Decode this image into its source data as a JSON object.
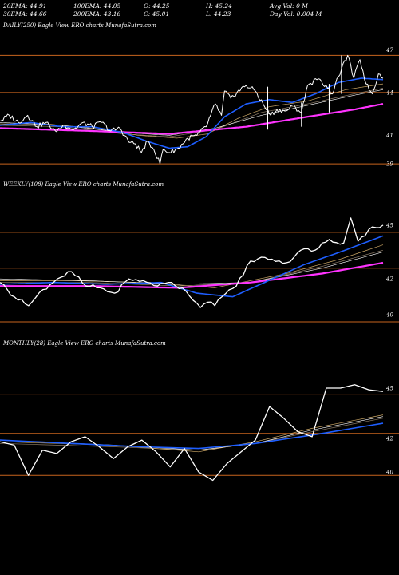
{
  "header": {
    "row1": [
      "20EMA: 44.91",
      "100EMA: 44.05",
      "O: 44.25",
      "H: 45.24",
      "Avg Vol: 0  M"
    ],
    "row2": [
      "30EMA: 44.66",
      "200EMA: 43.16",
      "C: 45.01",
      "L: 44.23",
      "Day Vol: 0.004  M"
    ]
  },
  "colors": {
    "price": "#ffffff",
    "ema_short": "#1e5eff",
    "ema_long": "#ff33ff",
    "ema_mid1": "#c8a464",
    "ema_mid2": "#8a7a66",
    "ema_mid3": "#ffffff",
    "level_line": "#c8641e",
    "background": "#000000"
  },
  "chart_data": [
    {
      "type": "line",
      "title": "DAILY(250) Eagle   View  ERO charts MunafaSutra.com",
      "y_ticks": [
        "47",
        "44",
        "41",
        "39"
      ],
      "y_tick_values": [
        47,
        44,
        41,
        39
      ],
      "ylim": [
        38.5,
        47.8
      ],
      "levels": [
        46.6,
        44.0,
        39.0
      ],
      "grid": false,
      "n": 250,
      "series": [
        {
          "key": "price",
          "color": "#ffffff",
          "anchors": [
            [
              0,
              42.0
            ],
            [
              6,
              42.4
            ],
            [
              12,
              41.9
            ],
            [
              18,
              42.4
            ],
            [
              24,
              41.6
            ],
            [
              30,
              41.9
            ],
            [
              36,
              41.3
            ],
            [
              42,
              41.7
            ],
            [
              48,
              41.4
            ],
            [
              54,
              41.9
            ],
            [
              60,
              41.6
            ],
            [
              66,
              41.9
            ],
            [
              72,
              41.3
            ],
            [
              78,
              41.5
            ],
            [
              84,
              40.5
            ],
            [
              88,
              40.4
            ],
            [
              92,
              39.8
            ],
            [
              96,
              40.6
            ],
            [
              100,
              40.0
            ],
            [
              104,
              39.0
            ],
            [
              106,
              40.0
            ],
            [
              110,
              39.8
            ],
            [
              116,
              40.1
            ],
            [
              122,
              40.8
            ],
            [
              128,
              41.0
            ],
            [
              134,
              41.6
            ],
            [
              140,
              43.2
            ],
            [
              144,
              42.4
            ],
            [
              146,
              44.1
            ],
            [
              150,
              43.6
            ],
            [
              154,
              44.0
            ],
            [
              160,
              44.5
            ],
            [
              166,
              44.1
            ],
            [
              172,
              43.0
            ],
            [
              176,
              42.4
            ],
            [
              180,
              42.8
            ],
            [
              186,
              42.7
            ],
            [
              190,
              43.1
            ],
            [
              196,
              42.6
            ],
            [
              200,
              44.5
            ],
            [
              206,
              44.9
            ],
            [
              212,
              44.5
            ],
            [
              216,
              43.9
            ],
            [
              220,
              45.1
            ],
            [
              226,
              46.6
            ],
            [
              230,
              45.0
            ],
            [
              234,
              46.3
            ],
            [
              238,
              44.6
            ],
            [
              242,
              43.9
            ],
            [
              246,
              45.3
            ],
            [
              249,
              45.0
            ]
          ]
        },
        {
          "key": "ema_short",
          "color": "#1e5eff",
          "anchors": [
            [
              0,
              41.7
            ],
            [
              20,
              41.9
            ],
            [
              40,
              41.6
            ],
            [
              60,
              41.6
            ],
            [
              80,
              41.2
            ],
            [
              95,
              40.6
            ],
            [
              110,
              40.1
            ],
            [
              122,
              40.2
            ],
            [
              134,
              40.9
            ],
            [
              146,
              42.3
            ],
            [
              160,
              43.2
            ],
            [
              175,
              43.5
            ],
            [
              190,
              43.3
            ],
            [
              205,
              43.9
            ],
            [
              220,
              44.7
            ],
            [
              235,
              45.0
            ],
            [
              249,
              44.9
            ]
          ]
        },
        {
          "key": "ema_mid1",
          "color": "#c8a464",
          "anchors": [
            [
              0,
              41.8
            ],
            [
              30,
              41.8
            ],
            [
              60,
              41.5
            ],
            [
              90,
              41.0
            ],
            [
              115,
              40.8
            ],
            [
              135,
              41.1
            ],
            [
              155,
              42.2
            ],
            [
              175,
              43.0
            ],
            [
              200,
              43.4
            ],
            [
              225,
              44.2
            ],
            [
              249,
              44.6
            ]
          ]
        },
        {
          "key": "ema_mid2",
          "color": "#8a7a66",
          "anchors": [
            [
              0,
              41.7
            ],
            [
              40,
              41.6
            ],
            [
              80,
              41.1
            ],
            [
              110,
              40.9
            ],
            [
              140,
              41.4
            ],
            [
              170,
              42.6
            ],
            [
              200,
              43.2
            ],
            [
              230,
              43.9
            ],
            [
              249,
              44.3
            ]
          ]
        },
        {
          "key": "ema_mid3",
          "color": "#ffffff",
          "anchors": [
            [
              0,
              41.9
            ],
            [
              40,
              41.7
            ],
            [
              80,
              41.2
            ],
            [
              110,
              41.0
            ],
            [
              140,
              41.5
            ],
            [
              170,
              42.4
            ],
            [
              200,
              43.1
            ],
            [
              230,
              43.8
            ],
            [
              249,
              44.2
            ]
          ]
        },
        {
          "key": "ema_long",
          "color": "#ff33ff",
          "anchors": [
            [
              0,
              41.5
            ],
            [
              60,
              41.3
            ],
            [
              110,
              41.1
            ],
            [
              160,
              41.6
            ],
            [
              200,
              42.3
            ],
            [
              230,
              42.8
            ],
            [
              249,
              43.2
            ]
          ]
        }
      ]
    },
    {
      "type": "line",
      "title": "WEEKLY(108) Eagle   View  ERO charts MunafaSutra.com",
      "y_ticks": [
        "45",
        "42",
        "40"
      ],
      "y_tick_values": [
        45,
        42,
        40
      ],
      "ylim": [
        39.2,
        46.6
      ],
      "levels": [
        44.6,
        42.6,
        39.6
      ],
      "grid": false,
      "n": 108,
      "series": [
        {
          "key": "price",
          "color": "#ffffff",
          "anchors": [
            [
              0,
              41.8
            ],
            [
              4,
              41.0
            ],
            [
              8,
              40.5
            ],
            [
              12,
              41.4
            ],
            [
              16,
              42.0
            ],
            [
              20,
              42.4
            ],
            [
              24,
              41.6
            ],
            [
              28,
              41.5
            ],
            [
              32,
              41.2
            ],
            [
              36,
              42.0
            ],
            [
              40,
              41.9
            ],
            [
              44,
              41.6
            ],
            [
              48,
              41.8
            ],
            [
              52,
              41.3
            ],
            [
              56,
              40.4
            ],
            [
              58,
              40.7
            ],
            [
              60,
              40.5
            ],
            [
              62,
              41.0
            ],
            [
              66,
              41.6
            ],
            [
              70,
              43.0
            ],
            [
              74,
              43.2
            ],
            [
              76,
              43.1
            ],
            [
              80,
              42.9
            ],
            [
              84,
              43.6
            ],
            [
              88,
              43.6
            ],
            [
              92,
              44.2
            ],
            [
              96,
              44.0
            ],
            [
              98,
              45.4
            ],
            [
              100,
              44.1
            ],
            [
              104,
              44.9
            ],
            [
              107,
              45.0
            ]
          ]
        },
        {
          "key": "ema_short",
          "color": "#1e5eff",
          "anchors": [
            [
              0,
              41.7
            ],
            [
              15,
              41.8
            ],
            [
              30,
              41.7
            ],
            [
              45,
              41.8
            ],
            [
              55,
              41.2
            ],
            [
              65,
              41.0
            ],
            [
              75,
              41.9
            ],
            [
              85,
              42.8
            ],
            [
              95,
              43.5
            ],
            [
              107,
              44.4
            ]
          ]
        },
        {
          "key": "ema_mid1",
          "color": "#c8a464",
          "anchors": [
            [
              0,
              41.9
            ],
            [
              20,
              41.9
            ],
            [
              40,
              41.8
            ],
            [
              60,
              41.5
            ],
            [
              80,
              42.3
            ],
            [
              95,
              43.1
            ],
            [
              107,
              43.9
            ]
          ]
        },
        {
          "key": "ema_mid2",
          "color": "#8a7a66",
          "anchors": [
            [
              0,
              41.8
            ],
            [
              25,
              41.8
            ],
            [
              50,
              41.6
            ],
            [
              70,
              41.8
            ],
            [
              90,
              42.7
            ],
            [
              107,
              43.6
            ]
          ]
        },
        {
          "key": "ema_mid3",
          "color": "#ffffff",
          "anchors": [
            [
              0,
              42.0
            ],
            [
              25,
              41.9
            ],
            [
              50,
              41.7
            ],
            [
              70,
              41.8
            ],
            [
              90,
              42.6
            ],
            [
              107,
              43.5
            ]
          ]
        },
        {
          "key": "ema_long",
          "color": "#ff33ff",
          "anchors": [
            [
              0,
              41.6
            ],
            [
              25,
              41.6
            ],
            [
              50,
              41.5
            ],
            [
              70,
              41.8
            ],
            [
              90,
              42.3
            ],
            [
              107,
              42.9
            ]
          ]
        }
      ]
    },
    {
      "type": "line",
      "title": "MONTHLY(28) Eagle   View  ERO charts MunafaSutra.com",
      "y_ticks": [
        "45",
        "42",
        "40"
      ],
      "y_tick_values": [
        45,
        42,
        40
      ],
      "ylim": [
        39.0,
        47.0
      ],
      "levels": [
        44.6,
        42.3,
        39.8
      ],
      "grid": false,
      "n": 28,
      "series": [
        {
          "key": "price",
          "color": "#ffffff",
          "anchors": [
            [
              0,
              41.8
            ],
            [
              1,
              41.6
            ],
            [
              2,
              39.8
            ],
            [
              3,
              41.3
            ],
            [
              4,
              41.1
            ],
            [
              5,
              41.8
            ],
            [
              6,
              42.1
            ],
            [
              7,
              41.5
            ],
            [
              8,
              40.8
            ],
            [
              9,
              41.5
            ],
            [
              10,
              41.9
            ],
            [
              11,
              41.2
            ],
            [
              12,
              40.3
            ],
            [
              13,
              41.4
            ],
            [
              14,
              40.0
            ],
            [
              15,
              39.5
            ],
            [
              16,
              40.5
            ],
            [
              17,
              41.2
            ],
            [
              18,
              41.9
            ],
            [
              19,
              43.9
            ],
            [
              20,
              43.2
            ],
            [
              21,
              42.4
            ],
            [
              22,
              42.1
            ],
            [
              23,
              45.0
            ],
            [
              24,
              45.0
            ],
            [
              25,
              45.2
            ],
            [
              26,
              44.9
            ],
            [
              27,
              44.8
            ]
          ]
        },
        {
          "key": "ema_short",
          "color": "#1e5eff",
          "anchors": [
            [
              0,
              41.9
            ],
            [
              5,
              41.7
            ],
            [
              10,
              41.5
            ],
            [
              14,
              41.4
            ],
            [
              18,
              41.7
            ],
            [
              22,
              42.2
            ],
            [
              27,
              42.9
            ]
          ]
        },
        {
          "key": "ema_mid1",
          "color": "#c8a464",
          "anchors": [
            [
              0,
              41.8
            ],
            [
              8,
              41.6
            ],
            [
              14,
              41.2
            ],
            [
              18,
              41.8
            ],
            [
              22,
              42.6
            ],
            [
              27,
              43.4
            ]
          ]
        },
        {
          "key": "ema_mid2",
          "color": "#8a7a66",
          "anchors": [
            [
              0,
              41.7
            ],
            [
              8,
              41.5
            ],
            [
              14,
              41.3
            ],
            [
              18,
              41.7
            ],
            [
              22,
              42.4
            ],
            [
              27,
              43.2
            ]
          ]
        },
        {
          "key": "ema_mid3",
          "color": "#ffffff",
          "anchors": [
            [
              0,
              41.9
            ],
            [
              8,
              41.6
            ],
            [
              14,
              41.3
            ],
            [
              18,
              41.7
            ],
            [
              22,
              42.5
            ],
            [
              27,
              43.3
            ]
          ]
        }
      ]
    }
  ]
}
